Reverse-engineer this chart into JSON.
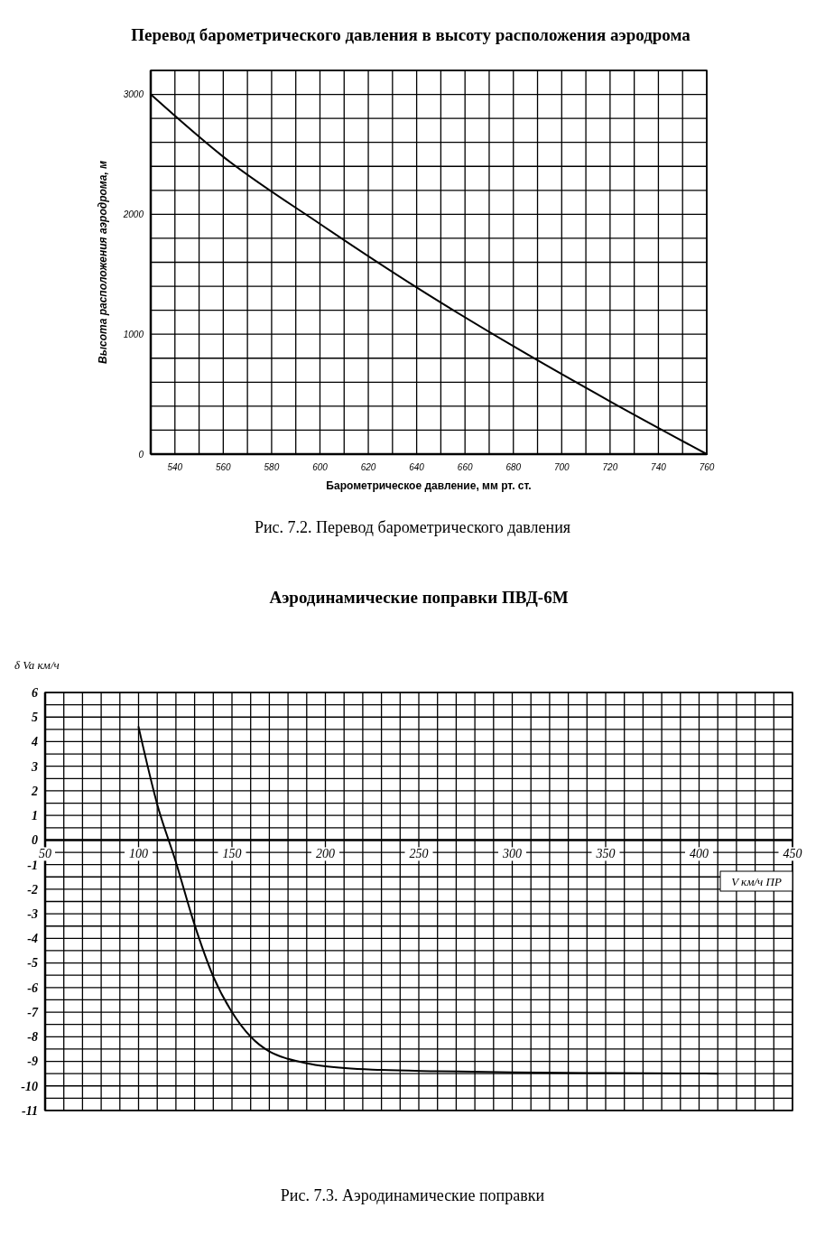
{
  "chart_data": [
    {
      "type": "line",
      "title": "Перевод барометрического давления в высоту расположения аэродрома",
      "xlabel": "Барометрическое давление, мм рт. ст.",
      "ylabel": "Высота расположения аэродрома, м",
      "annotations": [
        "Рис. 7.2. Перевод барометрического давления"
      ],
      "grid": true,
      "xlim": [
        530,
        760
      ],
      "ylim": [
        0,
        3200
      ],
      "xticks": [
        {
          "value": 530,
          "label": null
        },
        540,
        {
          "value": 550,
          "label": null
        },
        560,
        {
          "value": 570,
          "label": null
        },
        580,
        {
          "value": 590,
          "label": null
        },
        600,
        {
          "value": 610,
          "label": null
        },
        620,
        {
          "value": 630,
          "label": null
        },
        640,
        {
          "value": 650,
          "label": null
        },
        660,
        {
          "value": 670,
          "label": null
        },
        680,
        {
          "value": 690,
          "label": null
        },
        700,
        {
          "value": 710,
          "label": null
        },
        720,
        {
          "value": 730,
          "label": null
        },
        740,
        {
          "value": 750,
          "label": null
        },
        760
      ],
      "yticks": [
        0,
        {
          "value": 200,
          "label": null
        },
        {
          "value": 400,
          "label": null
        },
        {
          "value": 600,
          "label": null
        },
        {
          "value": 800,
          "label": null
        },
        1000,
        {
          "value": 1200,
          "label": null
        },
        {
          "value": 1400,
          "label": null
        },
        {
          "value": 1600,
          "label": null
        },
        {
          "value": 1800,
          "label": null
        },
        2000,
        {
          "value": 2200,
          "label": null
        },
        {
          "value": 2400,
          "label": null
        },
        {
          "value": 2600,
          "label": null
        },
        {
          "value": 2800,
          "label": null
        },
        3000,
        {
          "value": 3200,
          "label": null
        }
      ],
      "x": [
        530,
        560,
        600,
        640,
        680,
        720,
        760
      ],
      "series": [
        {
          "color": "#000000",
          "values": [
            3000,
            2480,
            1920,
            1390,
            900,
            440,
            0
          ]
        }
      ]
    },
    {
      "type": "line",
      "title": "Аэродинамические поправки ПВД-6М",
      "xlabel": "V км/ч ПР",
      "ylabel": "δ Va км/ч",
      "annotations": [
        "Рис. 7.3. Аэродинамические поправки"
      ],
      "grid": true,
      "xlim": [
        50,
        450
      ],
      "ylim": [
        -11,
        6
      ],
      "xticks": [
        50,
        {
          "value": 60,
          "label": null
        },
        {
          "value": 70,
          "label": null
        },
        {
          "value": 80,
          "label": null
        },
        {
          "value": 90,
          "label": null
        },
        100,
        {
          "value": 110,
          "label": null
        },
        {
          "value": 120,
          "label": null
        },
        {
          "value": 130,
          "label": null
        },
        {
          "value": 140,
          "label": null
        },
        150,
        {
          "value": 160,
          "label": null
        },
        {
          "value": 170,
          "label": null
        },
        {
          "value": 180,
          "label": null
        },
        {
          "value": 190,
          "label": null
        },
        200,
        {
          "value": 210,
          "label": null
        },
        {
          "value": 220,
          "label": null
        },
        {
          "value": 230,
          "label": null
        },
        {
          "value": 240,
          "label": null
        },
        250,
        {
          "value": 260,
          "label": null
        },
        {
          "value": 270,
          "label": null
        },
        {
          "value": 280,
          "label": null
        },
        {
          "value": 290,
          "label": null
        },
        300,
        {
          "value": 310,
          "label": null
        },
        {
          "value": 320,
          "label": null
        },
        {
          "value": 330,
          "label": null
        },
        {
          "value": 340,
          "label": null
        },
        350,
        {
          "value": 360,
          "label": null
        },
        {
          "value": 370,
          "label": null
        },
        {
          "value": 380,
          "label": null
        },
        {
          "value": 390,
          "label": null
        },
        400,
        {
          "value": 410,
          "label": null
        },
        {
          "value": 420,
          "label": null
        },
        {
          "value": 430,
          "label": null
        },
        {
          "value": 440,
          "label": null
        },
        450
      ],
      "yticks": [
        -11,
        {
          "value": -10.5,
          "label": null
        },
        -10,
        {
          "value": -9.5,
          "label": null
        },
        -9,
        {
          "value": -8.5,
          "label": null
        },
        -8,
        {
          "value": -7.5,
          "label": null
        },
        -7,
        {
          "value": -6.5,
          "label": null
        },
        -6,
        {
          "value": -5.5,
          "label": null
        },
        -5,
        {
          "value": -4.5,
          "label": null
        },
        -4,
        {
          "value": -3.5,
          "label": null
        },
        -3,
        {
          "value": -2.5,
          "label": null
        },
        -2,
        {
          "value": -1.5,
          "label": null
        },
        -1,
        {
          "value": -0.5,
          "label": null
        },
        0,
        {
          "value": 0.5,
          "label": null
        },
        1,
        {
          "value": 1.5,
          "label": null
        },
        2,
        {
          "value": 2.5,
          "label": null
        },
        3,
        {
          "value": 3.5,
          "label": null
        },
        4,
        {
          "value": 4.5,
          "label": null
        },
        5,
        {
          "value": 5.5,
          "label": null
        },
        6
      ],
      "x": [
        100,
        110,
        120,
        130,
        140,
        150,
        160,
        170,
        180,
        190,
        200,
        230,
        260,
        300,
        350,
        410
      ],
      "series": [
        {
          "color": "#000000",
          "values": [
            4.6,
            1.45,
            -0.9,
            -3.45,
            -5.55,
            -7.0,
            -8.0,
            -8.6,
            -8.9,
            -9.08,
            -9.2,
            -9.35,
            -9.4,
            -9.45,
            -9.48,
            -9.5
          ]
        }
      ]
    }
  ]
}
